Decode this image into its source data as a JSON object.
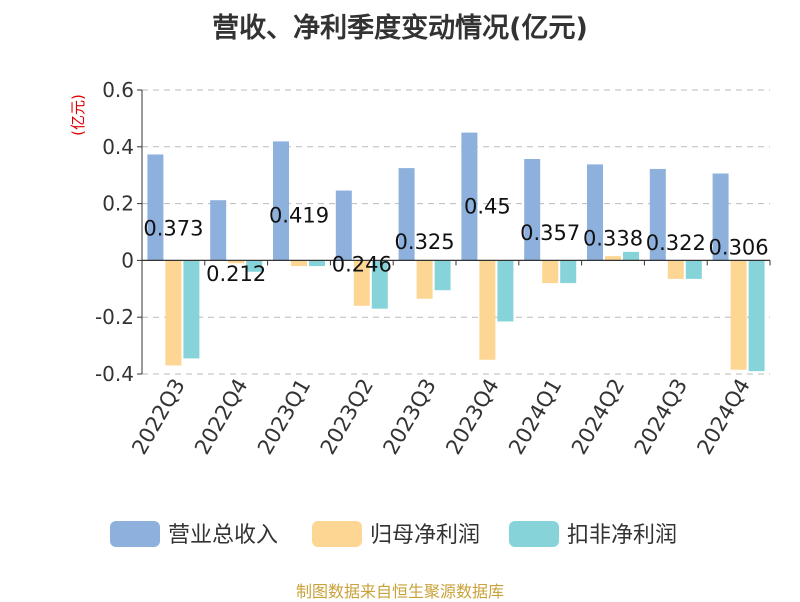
{
  "chart_data": {
    "type": "bar",
    "title": "营收、净利季度变动情况(亿元)",
    "ylabel": "(亿元)",
    "ylim": [
      -0.4,
      0.6
    ],
    "yticks": [
      "0.6",
      "0.4",
      "0.2",
      "0",
      "-0.2",
      "-0.4"
    ],
    "yticks_values": [
      0.6,
      0.4,
      0.2,
      0,
      -0.2,
      -0.4
    ],
    "grid": true,
    "legend_position": "bottom",
    "categories": [
      "2022Q3",
      "2022Q4",
      "2023Q1",
      "2023Q2",
      "2023Q3",
      "2023Q4",
      "2024Q1",
      "2024Q2",
      "2024Q3",
      "2024Q4"
    ],
    "series": [
      {
        "name": "营业总收入",
        "color": "#8eb0dd",
        "values": [
          0.373,
          0.212,
          0.419,
          0.246,
          0.325,
          0.45,
          0.357,
          0.338,
          0.322,
          0.306
        ],
        "labels": [
          "0.373",
          "0.212",
          "0.419",
          "0.246",
          "0.325",
          "0.45",
          "0.357",
          "0.338",
          "0.322",
          "0.306"
        ]
      },
      {
        "name": "归母净利润",
        "color": "#fdd694",
        "values": [
          -0.37,
          -0.01,
          -0.02,
          -0.16,
          -0.135,
          -0.35,
          -0.08,
          0.015,
          -0.065,
          -0.385
        ]
      },
      {
        "name": "扣非净利润",
        "color": "#86d4d9",
        "values": [
          -0.345,
          -0.04,
          -0.02,
          -0.17,
          -0.105,
          -0.215,
          -0.08,
          0.03,
          -0.065,
          -0.39
        ]
      }
    ]
  },
  "source": "制图数据来自恒生聚源数据库"
}
